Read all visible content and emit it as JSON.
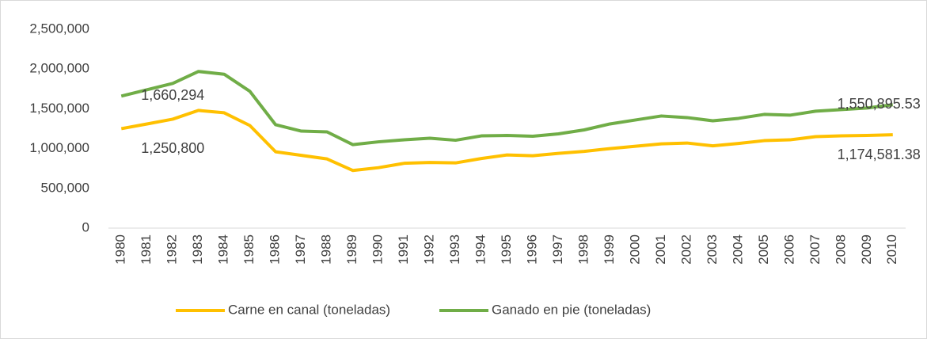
{
  "chart_data": {
    "type": "line",
    "categories": [
      "1980",
      "1981",
      "1982",
      "1983",
      "1984",
      "1985",
      "1986",
      "1987",
      "1988",
      "1989",
      "1990",
      "1991",
      "1992",
      "1993",
      "1994",
      "1995",
      "1996",
      "1997",
      "1998",
      "1999",
      "2000",
      "2001",
      "2002",
      "2003",
      "2004",
      "2005",
      "2006",
      "2007",
      "2008",
      "2009",
      "2010"
    ],
    "series": [
      {
        "name": "Carne en canal (toneladas)",
        "color": "#FFC000",
        "values": [
          1250800,
          1310000,
          1370000,
          1480000,
          1450000,
          1290000,
          960000,
          915000,
          870000,
          725000,
          760000,
          815000,
          825000,
          820000,
          875000,
          920000,
          910000,
          940000,
          965000,
          1000000,
          1030000,
          1060000,
          1070000,
          1035000,
          1065000,
          1100000,
          1110000,
          1150000,
          1160000,
          1165000,
          1174581.38
        ],
        "value_labels": [
          "1,250,800",
          null,
          null,
          null,
          null,
          null,
          null,
          null,
          null,
          null,
          null,
          null,
          null,
          null,
          null,
          null,
          null,
          null,
          null,
          null,
          null,
          null,
          null,
          null,
          null,
          null,
          null,
          null,
          null,
          null,
          "1,174,581.38"
        ]
      },
      {
        "name": "Ganado en pie (toneladas)",
        "color": "#70AD47",
        "values": [
          1660294,
          1740000,
          1820000,
          1970000,
          1935000,
          1720000,
          1300000,
          1220000,
          1210000,
          1050000,
          1085000,
          1110000,
          1130000,
          1105000,
          1160000,
          1165000,
          1155000,
          1185000,
          1235000,
          1310000,
          1360000,
          1410000,
          1390000,
          1350000,
          1380000,
          1430000,
          1420000,
          1470000,
          1490000,
          1510000,
          1550895.53
        ],
        "value_labels": [
          "1,660,294",
          null,
          null,
          null,
          null,
          null,
          null,
          null,
          null,
          null,
          null,
          null,
          null,
          null,
          null,
          null,
          null,
          null,
          null,
          null,
          null,
          null,
          null,
          null,
          null,
          null,
          null,
          null,
          null,
          null,
          "1,550,895.53"
        ]
      }
    ],
    "ylim": [
      0,
      2500000
    ],
    "yticks": [
      0,
      {
        "value": 500000,
        "label": "500,000"
      },
      {
        "value": 1000000,
        "label": "1,000,000"
      },
      {
        "value": 1500000,
        "label": "1,500,000"
      },
      {
        "value": 2000000,
        "label": "2,000,000"
      },
      {
        "value": 2500000,
        "label": "2,500,000"
      }
    ],
    "grid": false,
    "legend": "bottom"
  }
}
